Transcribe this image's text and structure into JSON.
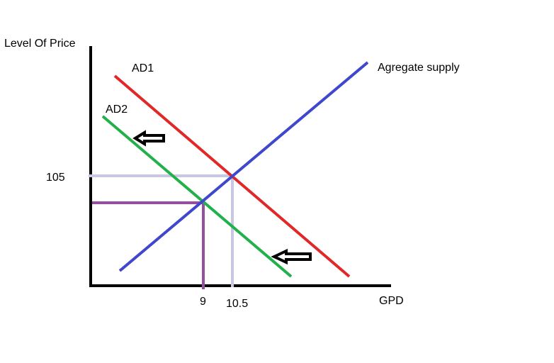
{
  "labels": {
    "y_axis": "Level Of Price",
    "x_axis": "GPD",
    "ad1": "AD1",
    "ad2": "AD2",
    "as": "Agregate supply",
    "price_105": "105",
    "gdp_9": "9",
    "gdp_10_5": "10.5"
  },
  "colors": {
    "ad1": "#e02828",
    "ad2": "#22b04a",
    "as": "#3f48cc",
    "guide_initial": "#c8c8e2",
    "guide_new": "#9450a0",
    "axes": "#000000"
  },
  "icons": [
    "left-arrow-icon",
    "left-arrow-icon"
  ]
}
